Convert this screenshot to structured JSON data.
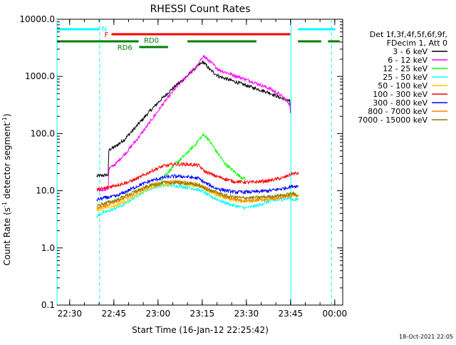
{
  "chart_data": {
    "type": "line",
    "title": "RHESSI Count Rates",
    "xlabel": "Start Time (16-Jan-12 22:25:42)",
    "ylabel_main": "Count Rate (s",
    "ylabel_sup": "-1",
    "ylabel_tail": " detector segment",
    "ylabel_sup2": "-1",
    "ylabel_end": ")",
    "x_unit": "minutes since 22:25:42",
    "xlim": [
      0,
      97
    ],
    "ylim": [
      0.1,
      10000
    ],
    "yscale": "log",
    "x_ticks": [
      {
        "t": 4.3,
        "label": "22:30"
      },
      {
        "t": 19.3,
        "label": "22:45"
      },
      {
        "t": 34.3,
        "label": "23:00"
      },
      {
        "t": 49.3,
        "label": "23:15"
      },
      {
        "t": 64.3,
        "label": "23:30"
      },
      {
        "t": 79.3,
        "label": "23:45"
      },
      {
        "t": 94.3,
        "label": "00:00"
      }
    ],
    "y_ticks": [
      {
        "v": 0.1,
        "label": "0.1"
      },
      {
        "v": 1,
        "label": "1.0"
      },
      {
        "v": 10,
        "label": "10.0"
      },
      {
        "v": 100,
        "label": "100.0"
      },
      {
        "v": 1000,
        "label": "1000.0"
      },
      {
        "v": 10000,
        "label": "10000.0"
      }
    ],
    "legend": {
      "position": "right",
      "header": [
        "Det 1f,3f,4f,5f,6f,9f,",
        "FDecim 1, Att 0"
      ]
    },
    "series": [
      {
        "name": "3 - 6 keV",
        "color": "#000000",
        "points": [
          [
            13.5,
            18
          ],
          [
            17.4,
            19
          ],
          [
            17.6,
            52
          ],
          [
            20,
            60
          ],
          [
            23,
            80
          ],
          [
            27,
            135
          ],
          [
            31,
            230
          ],
          [
            35,
            380
          ],
          [
            39,
            600
          ],
          [
            43,
            900
          ],
          [
            47,
            1400
          ],
          [
            49.6,
            1800
          ],
          [
            52,
            1300
          ],
          [
            55,
            1000
          ],
          [
            60,
            820
          ],
          [
            66,
            650
          ],
          [
            72,
            520
          ],
          [
            76,
            420
          ],
          [
            79,
            370
          ],
          [
            79.3,
            230
          ]
        ]
      },
      {
        "name": "6 - 12 keV",
        "color": "#ff00ff",
        "points": [
          [
            13.5,
            10
          ],
          [
            17.4,
            11
          ],
          [
            17.6,
            24
          ],
          [
            20,
            30
          ],
          [
            24,
            50
          ],
          [
            28,
            90
          ],
          [
            32,
            170
          ],
          [
            36,
            330
          ],
          [
            40,
            600
          ],
          [
            44,
            1000
          ],
          [
            48,
            1600
          ],
          [
            49.6,
            2300
          ],
          [
            52,
            1800
          ],
          [
            55,
            1300
          ],
          [
            60,
            1050
          ],
          [
            66,
            820
          ],
          [
            72,
            620
          ],
          [
            76,
            470
          ],
          [
            79,
            330
          ],
          [
            79.3,
            230
          ]
        ]
      },
      {
        "name": "12 - 25 keV",
        "color": "#00ff00",
        "points": [
          [
            35,
            15
          ],
          [
            38,
            22
          ],
          [
            41,
            32
          ],
          [
            44,
            45
          ],
          [
            47,
            65
          ],
          [
            49.6,
            95
          ],
          [
            51,
            85
          ],
          [
            54,
            50
          ],
          [
            57,
            30
          ],
          [
            60,
            22
          ],
          [
            62,
            18
          ],
          [
            64,
            16
          ]
        ]
      },
      {
        "name": "25 - 50 keV",
        "color": "#00ffff",
        "points": [
          [
            13.5,
            3.5
          ],
          [
            15,
            4
          ],
          [
            18,
            4.5
          ],
          [
            22,
            5.5
          ],
          [
            26,
            7.5
          ],
          [
            30,
            10
          ],
          [
            34,
            12
          ],
          [
            38,
            12.5
          ],
          [
            42,
            12
          ],
          [
            46,
            11
          ],
          [
            49,
            10
          ],
          [
            52,
            8
          ],
          [
            56,
            6.5
          ],
          [
            60,
            5.5
          ],
          [
            64,
            5
          ],
          [
            68,
            5.5
          ],
          [
            72,
            6.5
          ],
          [
            76,
            7
          ],
          [
            79,
            7.5
          ],
          [
            80,
            7
          ],
          [
            82,
            7
          ]
        ]
      },
      {
        "name": "50 - 100 keV",
        "color": "#ffcc00",
        "points": [
          [
            13.5,
            4.5
          ],
          [
            16,
            5
          ],
          [
            20,
            5.5
          ],
          [
            24,
            7
          ],
          [
            28,
            9
          ],
          [
            32,
            11.5
          ],
          [
            36,
            13
          ],
          [
            40,
            13.5
          ],
          [
            44,
            13
          ],
          [
            48,
            12
          ],
          [
            50,
            11
          ],
          [
            53,
            9
          ],
          [
            57,
            7.5
          ],
          [
            61,
            6.5
          ],
          [
            65,
            6.5
          ],
          [
            70,
            7
          ],
          [
            75,
            7.5
          ],
          [
            80,
            8.5
          ],
          [
            82,
            8
          ]
        ]
      },
      {
        "name": "100 - 300 keV",
        "color": "#ff0000",
        "points": [
          [
            13.5,
            10.5
          ],
          [
            16,
            11
          ],
          [
            20,
            12.5
          ],
          [
            24,
            14
          ],
          [
            28,
            17
          ],
          [
            32,
            22
          ],
          [
            36,
            27
          ],
          [
            40,
            29
          ],
          [
            44,
            29
          ],
          [
            48,
            28
          ],
          [
            50,
            22
          ],
          [
            54,
            18
          ],
          [
            60,
            14.5
          ],
          [
            66,
            14
          ],
          [
            72,
            15
          ],
          [
            77,
            17
          ],
          [
            79,
            19
          ],
          [
            80,
            20
          ],
          [
            82,
            20
          ]
        ]
      },
      {
        "name": "300 - 800 keV",
        "color": "#0000ff",
        "points": [
          [
            13.5,
            7
          ],
          [
            16,
            7.5
          ],
          [
            20,
            8
          ],
          [
            24,
            10
          ],
          [
            28,
            12.5
          ],
          [
            32,
            15
          ],
          [
            36,
            17
          ],
          [
            40,
            18
          ],
          [
            44,
            17.5
          ],
          [
            48,
            16.5
          ],
          [
            50,
            14
          ],
          [
            54,
            11
          ],
          [
            60,
            9.5
          ],
          [
            66,
            9.5
          ],
          [
            72,
            10
          ],
          [
            77,
            11
          ],
          [
            80,
            12
          ],
          [
            82,
            12
          ]
        ]
      },
      {
        "name": "800 - 7000 keV",
        "color": "#ff8000",
        "points": [
          [
            13.5,
            5
          ],
          [
            16,
            5.5
          ],
          [
            20,
            6.2
          ],
          [
            24,
            8
          ],
          [
            28,
            10
          ],
          [
            32,
            12.5
          ],
          [
            36,
            14
          ],
          [
            40,
            14.5
          ],
          [
            44,
            14
          ],
          [
            48,
            13
          ],
          [
            50,
            11.5
          ],
          [
            54,
            9
          ],
          [
            58,
            7.5
          ],
          [
            63,
            6.8
          ],
          [
            68,
            6.8
          ],
          [
            73,
            7.2
          ],
          [
            78,
            8
          ],
          [
            80,
            8.5
          ],
          [
            82,
            8
          ]
        ]
      },
      {
        "name": "7000 - 15000 keV",
        "color": "#808000",
        "points": [
          [
            13.5,
            5.5
          ],
          [
            16,
            6
          ],
          [
            20,
            6.8
          ],
          [
            24,
            8.5
          ],
          [
            28,
            10.5
          ],
          [
            32,
            12.5
          ],
          [
            36,
            13.8
          ],
          [
            40,
            14
          ],
          [
            44,
            13.5
          ],
          [
            48,
            12.5
          ],
          [
            50,
            11
          ],
          [
            54,
            9.5
          ],
          [
            58,
            8
          ],
          [
            63,
            7.5
          ],
          [
            68,
            7.6
          ],
          [
            73,
            8
          ],
          [
            78,
            8.6
          ],
          [
            80,
            9
          ],
          [
            82,
            8.5
          ]
        ]
      }
    ],
    "flags": [
      {
        "label": "N",
        "color": "#00ffff",
        "row": "top",
        "segments": [
          [
            0,
            14.5
          ],
          [
            81.8,
            94.5
          ]
        ]
      },
      {
        "label": "F",
        "color": "#ff0000",
        "row": "mid",
        "segments": [
          [
            18.5,
            79.2
          ]
        ]
      },
      {
        "label": "RD0",
        "color": "#008000",
        "row": "low",
        "segments": [
          [
            0,
            27.7
          ],
          [
            44.3,
            67.7
          ],
          [
            81.8,
            89.7
          ],
          [
            92,
            96
          ]
        ]
      },
      {
        "label": "RD6",
        "color": "#008000",
        "row": "lower",
        "segments": [
          [
            27.9,
            37.7
          ]
        ]
      }
    ],
    "markers": {
      "solid": {
        "color": "#00ffff",
        "times": [
          0,
          79.4
        ]
      },
      "dashed": {
        "color": "#00ffff",
        "times": [
          14.5,
          93.2
        ]
      }
    },
    "footer": "18-Oct-2021 22:05"
  }
}
